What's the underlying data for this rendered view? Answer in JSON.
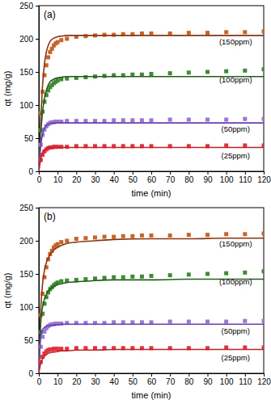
{
  "chart_data": [
    {
      "type": "scatter",
      "title": "(a)",
      "x_label": "time (min)",
      "y_label": "qt (mg/g)",
      "xlim": [
        0,
        120
      ],
      "xticks": [
        0,
        10,
        20,
        30,
        40,
        50,
        60,
        70,
        80,
        90,
        100,
        110,
        120
      ],
      "ylim": [
        0,
        250
      ],
      "yticks": [
        0,
        50,
        100,
        150,
        200,
        250
      ],
      "series": [
        {
          "name": "(150ppm)",
          "type": "scatter",
          "marker": "square",
          "color": "#c8642a",
          "x": [
            1,
            2,
            3,
            4,
            5,
            6,
            7,
            8,
            9,
            10,
            12,
            15,
            20,
            25,
            30,
            35,
            40,
            45,
            50,
            55,
            60,
            70,
            80,
            90,
            100,
            110,
            120
          ],
          "values": [
            88,
            120,
            145,
            160,
            172,
            180,
            185,
            190,
            193,
            195,
            198,
            200,
            203,
            204,
            205,
            206,
            206,
            207,
            207,
            208,
            208,
            208,
            209,
            209,
            210,
            210,
            211
          ]
        },
        {
          "type": "line",
          "line_style": "solid",
          "color": "#8a3512",
          "x": [
            0,
            1,
            2,
            3,
            4,
            5,
            6,
            8,
            10,
            12,
            15,
            20,
            30,
            40,
            60,
            80,
            100,
            120
          ],
          "values": [
            0,
            75,
            130,
            162,
            180,
            190,
            196,
            201,
            203,
            204,
            205,
            205,
            205,
            205,
            205,
            205,
            205,
            205
          ]
        },
        {
          "name": "(100ppm)",
          "type": "scatter",
          "marker": "square",
          "color": "#3f8a35",
          "x": [
            1,
            2,
            3,
            4,
            5,
            6,
            7,
            8,
            9,
            10,
            12,
            15,
            20,
            25,
            30,
            35,
            40,
            45,
            50,
            55,
            60,
            70,
            80,
            90,
            100,
            110,
            120
          ],
          "values": [
            62,
            90,
            105,
            115,
            122,
            127,
            130,
            133,
            135,
            137,
            139,
            140,
            141,
            142,
            143,
            144,
            145,
            145,
            146,
            146,
            147,
            148,
            149,
            150,
            151,
            152,
            154
          ]
        },
        {
          "type": "line",
          "line_style": "solid",
          "color": "#245c1b",
          "x": [
            0,
            1,
            2,
            3,
            4,
            5,
            6,
            8,
            10,
            12,
            15,
            20,
            30,
            40,
            60,
            80,
            100,
            120
          ],
          "values": [
            0,
            55,
            90,
            110,
            122,
            130,
            135,
            139,
            141,
            142,
            143,
            143,
            143,
            143,
            143,
            143,
            143,
            143
          ]
        },
        {
          "name": "(50ppm)",
          "type": "scatter",
          "marker": "square",
          "color": "#9a7ad0",
          "x": [
            1,
            2,
            3,
            4,
            5,
            6,
            7,
            8,
            9,
            10,
            12,
            15,
            20,
            25,
            30,
            35,
            40,
            45,
            50,
            55,
            60,
            70,
            80,
            90,
            100,
            110,
            120
          ],
          "values": [
            40,
            55,
            63,
            68,
            71,
            73,
            74,
            74,
            75,
            75,
            75,
            76,
            76,
            76,
            76,
            76,
            77,
            77,
            77,
            77,
            77,
            78,
            78,
            78,
            78,
            79,
            79
          ]
        },
        {
          "type": "line",
          "line_style": "solid",
          "color": "#6a3cb4",
          "x": [
            0,
            1,
            2,
            3,
            4,
            5,
            6,
            8,
            10,
            12,
            15,
            20,
            30,
            40,
            60,
            80,
            100,
            120
          ],
          "values": [
            0,
            38,
            56,
            65,
            69,
            71,
            72,
            73,
            73,
            73,
            73,
            73,
            73,
            73,
            73,
            73,
            73,
            73
          ]
        },
        {
          "name": "(25ppm)",
          "type": "scatter",
          "marker": "square",
          "color": "#e0333c",
          "x": [
            1,
            2,
            3,
            4,
            5,
            6,
            7,
            8,
            9,
            10,
            12,
            15,
            20,
            25,
            30,
            35,
            40,
            45,
            50,
            55,
            60,
            70,
            80,
            90,
            100,
            110,
            120
          ],
          "values": [
            17,
            25,
            30,
            33,
            35,
            36,
            36,
            37,
            37,
            37,
            37,
            37,
            38,
            38,
            38,
            38,
            38,
            38,
            38,
            38,
            38,
            38,
            38,
            38,
            39,
            39,
            39
          ]
        },
        {
          "type": "line",
          "line_style": "solid",
          "color": "#c0202a",
          "x": [
            0,
            1,
            2,
            3,
            4,
            5,
            6,
            8,
            10,
            12,
            15,
            20,
            30,
            40,
            60,
            80,
            100,
            120
          ],
          "values": [
            0,
            18,
            28,
            32,
            34,
            35,
            36,
            36,
            36,
            36,
            36,
            36,
            36,
            36,
            36,
            36,
            36,
            36
          ]
        }
      ]
    },
    {
      "type": "scatter",
      "title": "(b)",
      "x_label": "time (min)",
      "y_label": "qt (mg/g)",
      "xlim": [
        0,
        120
      ],
      "xticks": [
        0,
        10,
        20,
        30,
        40,
        50,
        60,
        70,
        80,
        90,
        100,
        110,
        120
      ],
      "ylim": [
        0,
        250
      ],
      "yticks": [
        0,
        50,
        100,
        150,
        200,
        250
      ],
      "series": [
        {
          "name": "(150ppm)",
          "type": "scatter",
          "marker": "square",
          "color": "#c8642a",
          "x": [
            1,
            2,
            3,
            4,
            5,
            6,
            7,
            8,
            9,
            10,
            12,
            15,
            20,
            25,
            30,
            35,
            40,
            45,
            50,
            55,
            60,
            70,
            80,
            90,
            100,
            110,
            120
          ],
          "values": [
            88,
            120,
            145,
            160,
            172,
            180,
            185,
            190,
            193,
            195,
            198,
            200,
            203,
            204,
            205,
            206,
            206,
            207,
            207,
            208,
            208,
            208,
            209,
            209,
            210,
            210,
            211
          ]
        },
        {
          "type": "line",
          "line_style": "solid",
          "color": "#8a3512",
          "x": [
            0,
            1,
            2,
            3,
            4,
            5,
            6,
            8,
            10,
            12,
            15,
            20,
            30,
            40,
            60,
            80,
            100,
            120
          ],
          "values": [
            0,
            95,
            135,
            155,
            167,
            174,
            179,
            186,
            190,
            193,
            196,
            198,
            200,
            202,
            203,
            203,
            204,
            204
          ]
        },
        {
          "name": "(100ppm)",
          "type": "scatter",
          "marker": "square",
          "color": "#3f8a35",
          "x": [
            1,
            2,
            3,
            4,
            5,
            6,
            7,
            8,
            9,
            10,
            12,
            15,
            20,
            25,
            30,
            35,
            40,
            45,
            50,
            55,
            60,
            70,
            80,
            90,
            100,
            110,
            120
          ],
          "values": [
            62,
            90,
            105,
            115,
            122,
            127,
            130,
            133,
            135,
            137,
            139,
            140,
            141,
            142,
            143,
            144,
            145,
            145,
            146,
            146,
            147,
            148,
            149,
            150,
            151,
            152,
            154
          ]
        },
        {
          "type": "line",
          "line_style": "solid",
          "color": "#245c1b",
          "x": [
            0,
            1,
            2,
            3,
            4,
            5,
            6,
            8,
            10,
            12,
            15,
            20,
            30,
            40,
            60,
            80,
            100,
            120
          ],
          "values": [
            0,
            75,
            100,
            112,
            119,
            124,
            127,
            131,
            134,
            135,
            137,
            138,
            140,
            141,
            141,
            142,
            142,
            142
          ]
        },
        {
          "name": "(50ppm)",
          "type": "scatter",
          "marker": "square",
          "color": "#9a7ad0",
          "x": [
            1,
            2,
            3,
            4,
            5,
            6,
            7,
            8,
            9,
            10,
            12,
            15,
            20,
            25,
            30,
            35,
            40,
            45,
            50,
            55,
            60,
            70,
            80,
            90,
            100,
            110,
            120
          ],
          "values": [
            40,
            55,
            63,
            68,
            71,
            73,
            74,
            74,
            75,
            75,
            75,
            76,
            76,
            76,
            76,
            76,
            77,
            77,
            77,
            77,
            77,
            78,
            78,
            78,
            78,
            79,
            79
          ]
        },
        {
          "type": "line",
          "line_style": "solid",
          "color": "#6a3cb4",
          "x": [
            0,
            1,
            2,
            3,
            4,
            5,
            6,
            8,
            10,
            12,
            15,
            20,
            30,
            40,
            60,
            80,
            100,
            120
          ],
          "values": [
            0,
            55,
            66,
            69,
            71,
            72,
            72,
            73,
            73,
            74,
            74,
            74,
            74,
            74,
            74,
            74,
            74,
            74
          ]
        },
        {
          "name": "(25ppm)",
          "type": "scatter",
          "marker": "square",
          "color": "#e0333c",
          "x": [
            1,
            2,
            3,
            4,
            5,
            6,
            7,
            8,
            9,
            10,
            12,
            15,
            20,
            25,
            30,
            35,
            40,
            45,
            50,
            55,
            60,
            70,
            80,
            90,
            100,
            110,
            120
          ],
          "values": [
            17,
            25,
            30,
            33,
            35,
            36,
            36,
            37,
            37,
            37,
            37,
            37,
            38,
            38,
            38,
            38,
            38,
            38,
            38,
            38,
            38,
            38,
            38,
            38,
            39,
            39,
            39
          ]
        },
        {
          "type": "line",
          "line_style": "solid",
          "color": "#c0202a",
          "x": [
            0,
            1,
            2,
            3,
            4,
            5,
            6,
            8,
            10,
            12,
            15,
            20,
            30,
            40,
            60,
            80,
            100,
            120
          ],
          "values": [
            0,
            15,
            22,
            26,
            28,
            30,
            31,
            32,
            33,
            34,
            34,
            35,
            35,
            36,
            36,
            36,
            36,
            36
          ]
        }
      ]
    }
  ]
}
